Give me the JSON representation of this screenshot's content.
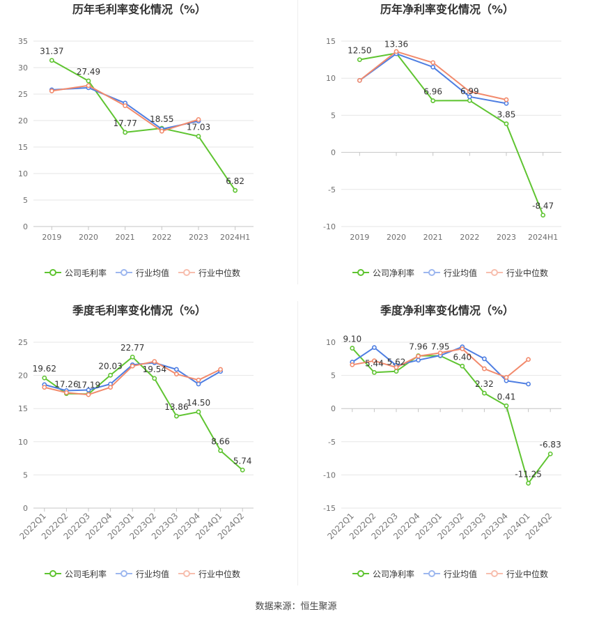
{
  "chart_data": [
    {
      "type": "line",
      "title": "历年毛利率变化情况（%）",
      "categories": [
        "2019",
        "2020",
        "2021",
        "2022",
        "2023",
        "2024H1"
      ],
      "ylim": [
        0,
        35
      ],
      "yticks": [
        0,
        5,
        10,
        15,
        20,
        25,
        30,
        35
      ],
      "grid": true,
      "legend": "bottom",
      "series": [
        {
          "name": "公司毛利率",
          "color": "#5fc431",
          "values": [
            31.37,
            27.49,
            17.77,
            18.55,
            17.03,
            6.82
          ],
          "labels": [
            "31.37",
            "27.49",
            "17.77",
            "18.55",
            "17.03",
            "6.82"
          ]
        },
        {
          "name": "行业均值",
          "color": "#4e7ee2",
          "values": [
            25.8,
            26.2,
            23.3,
            18.4,
            19.9,
            null
          ]
        },
        {
          "name": "行业中位数",
          "color": "#f28a6c",
          "values": [
            25.6,
            26.6,
            22.8,
            18.0,
            20.2,
            null
          ]
        }
      ]
    },
    {
      "type": "line",
      "title": "历年净利率变化情况（%）",
      "categories": [
        "2019",
        "2020",
        "2021",
        "2022",
        "2023",
        "2024H1"
      ],
      "ylim": [
        -10,
        15
      ],
      "yticks": [
        -10,
        -5,
        0,
        5,
        10,
        15
      ],
      "grid": true,
      "legend": "bottom",
      "series": [
        {
          "name": "公司净利率",
          "color": "#5fc431",
          "values": [
            12.5,
            13.36,
            6.96,
            6.99,
            3.85,
            -8.47
          ],
          "labels": [
            "12.50",
            "13.36",
            "6.96",
            "6.99",
            "3.85",
            "-8.47"
          ]
        },
        {
          "name": "行业均值",
          "color": "#4e7ee2",
          "values": [
            9.7,
            13.3,
            11.5,
            7.5,
            6.6,
            null
          ]
        },
        {
          "name": "行业中位数",
          "color": "#f28a6c",
          "values": [
            9.7,
            13.6,
            12.1,
            8.2,
            7.1,
            null
          ]
        }
      ]
    },
    {
      "type": "line",
      "title": "季度毛利率变化情况（%）",
      "categories": [
        "2022Q1",
        "2022Q2",
        "2022Q3",
        "2022Q4",
        "2023Q1",
        "2023Q2",
        "2023Q3",
        "2023Q4",
        "2024Q1",
        "2024Q2"
      ],
      "ylim": [
        0,
        25
      ],
      "yticks": [
        0,
        5,
        10,
        15,
        20,
        25
      ],
      "grid": true,
      "legend": "bottom",
      "series": [
        {
          "name": "公司毛利率",
          "color": "#5fc431",
          "values": [
            19.62,
            17.26,
            17.19,
            20.03,
            22.77,
            19.54,
            13.86,
            14.5,
            8.66,
            5.74
          ],
          "labels": [
            "19.62",
            "17.26",
            "17.19",
            "20.03",
            "22.77",
            "19.54",
            "13.86",
            "14.50",
            "8.66",
            "5.74"
          ]
        },
        {
          "name": "行业均值",
          "color": "#4e7ee2",
          "values": [
            18.6,
            17.7,
            17.8,
            18.7,
            21.6,
            21.9,
            20.9,
            18.7,
            20.6,
            null
          ]
        },
        {
          "name": "行业中位数",
          "color": "#f28a6c",
          "values": [
            18.2,
            17.4,
            17.1,
            18.2,
            21.4,
            22.1,
            20.2,
            19.3,
            20.9,
            null
          ]
        }
      ]
    },
    {
      "type": "line",
      "title": "季度净利率变化情况（%）",
      "categories": [
        "2022Q1",
        "2022Q2",
        "2022Q3",
        "2022Q4",
        "2023Q1",
        "2023Q2",
        "2023Q3",
        "2023Q4",
        "2024Q1",
        "2024Q2"
      ],
      "ylim": [
        -15,
        10
      ],
      "yticks": [
        -15,
        -10,
        -5,
        0,
        5,
        10
      ],
      "grid": true,
      "legend": "bottom",
      "series": [
        {
          "name": "公司净利率",
          "color": "#5fc431",
          "values": [
            9.1,
            5.44,
            5.62,
            7.96,
            7.95,
            6.4,
            2.32,
            0.41,
            -11.25,
            -6.83
          ],
          "labels": [
            "9.10",
            "5.44",
            "5.62",
            "7.96",
            "7.95",
            "6.40",
            "2.32",
            "0.41",
            "-11.25",
            "-6.83"
          ]
        },
        {
          "name": "行业均值",
          "color": "#4e7ee2",
          "values": [
            7.0,
            9.2,
            6.5,
            7.3,
            8.0,
            9.3,
            7.5,
            4.2,
            3.7,
            null
          ]
        },
        {
          "name": "行业中位数",
          "color": "#f28a6c",
          "values": [
            6.6,
            7.2,
            6.2,
            7.9,
            8.4,
            9.0,
            6.0,
            4.7,
            7.4,
            null
          ]
        }
      ]
    }
  ],
  "footer": {
    "source": "数据来源：恒生聚源"
  }
}
